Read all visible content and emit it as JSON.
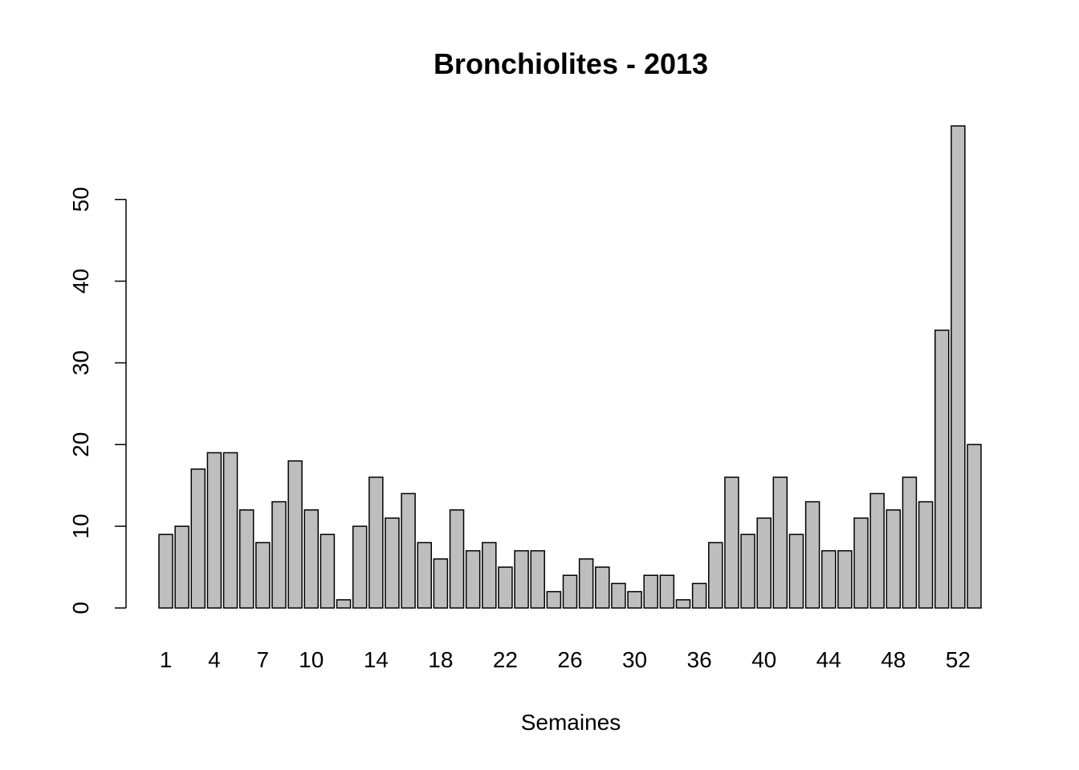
{
  "chart_data": {
    "type": "bar",
    "title": "Bronchiolites - 2013",
    "xlabel": "Semaines",
    "categories": [
      "1",
      null,
      null,
      "4",
      null,
      null,
      "7",
      null,
      null,
      "10",
      null,
      null,
      null,
      "14",
      null,
      null,
      null,
      "18",
      null,
      null,
      null,
      "22",
      null,
      null,
      null,
      "26",
      null,
      null,
      null,
      "30",
      null,
      null,
      null,
      "36",
      null,
      null,
      null,
      "40",
      null,
      null,
      null,
      "44",
      null,
      null,
      null,
      "48",
      null,
      null,
      null,
      "52",
      null
    ],
    "values": [
      9,
      10,
      17,
      19,
      19,
      12,
      8,
      13,
      18,
      12,
      9,
      1,
      10,
      16,
      11,
      14,
      8,
      6,
      12,
      7,
      8,
      5,
      7,
      7,
      2,
      4,
      6,
      5,
      3,
      2,
      4,
      4,
      1,
      3,
      8,
      16,
      9,
      11,
      16,
      9,
      13,
      7,
      7,
      11,
      14,
      12,
      16,
      13,
      34,
      59,
      20
    ],
    "color": "#bebebe",
    "ylim": [
      0,
      59
    ],
    "yticks": [
      0,
      10,
      20,
      30,
      40,
      50
    ]
  }
}
